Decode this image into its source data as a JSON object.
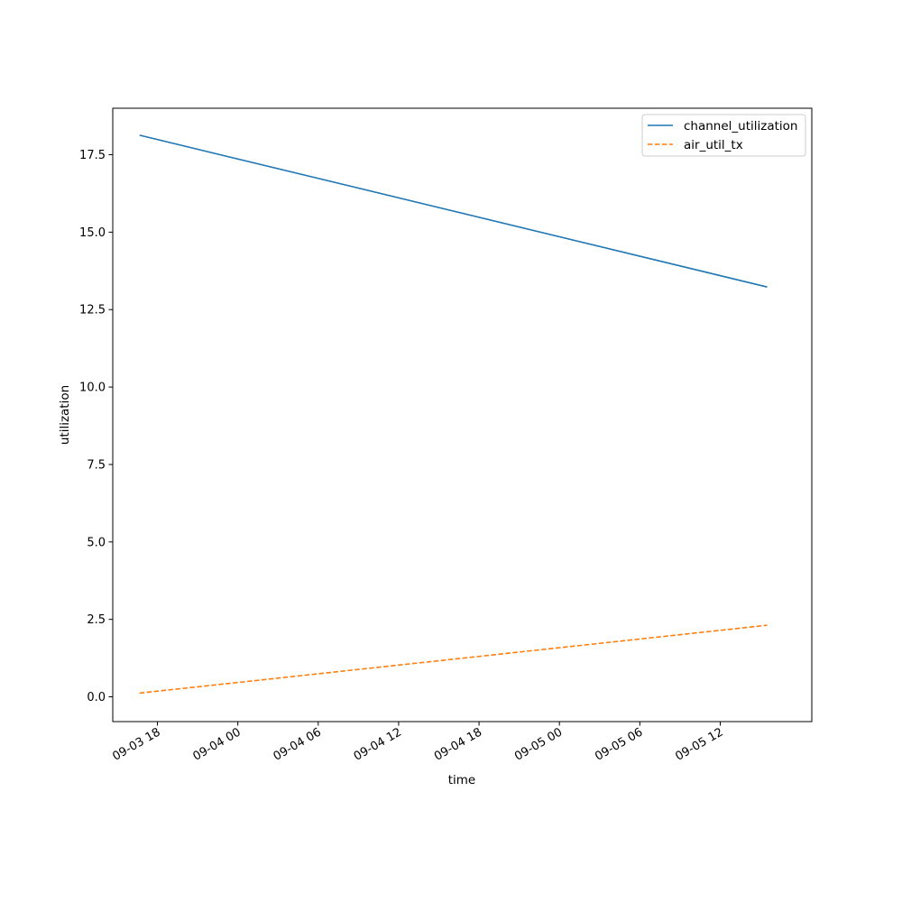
{
  "chart_data": {
    "type": "line",
    "title": "",
    "xlabel": "time",
    "ylabel": "utilization",
    "x_type": "datetime",
    "x": [
      "2023-09-03 16:40",
      "2023-09-05 15:30"
    ],
    "xlim": [
      "2023-09-03 14:40",
      "2023-09-05 18:50"
    ],
    "ylim": [
      -0.8,
      19.0
    ],
    "x_ticks": [
      {
        "value": "2023-09-03 18:00",
        "label": "09-03 18"
      },
      {
        "value": "2023-09-04 00:00",
        "label": "09-04 00"
      },
      {
        "value": "2023-09-04 06:00",
        "label": "09-04 06"
      },
      {
        "value": "2023-09-04 12:00",
        "label": "09-04 12"
      },
      {
        "value": "2023-09-04 18:00",
        "label": "09-04 18"
      },
      {
        "value": "2023-09-05 00:00",
        "label": "09-05 00"
      },
      {
        "value": "2023-09-05 06:00",
        "label": "09-05 06"
      },
      {
        "value": "2023-09-05 12:00",
        "label": "09-05 12"
      }
    ],
    "y_ticks": [
      0.0,
      2.5,
      5.0,
      7.5,
      10.0,
      12.5,
      15.0,
      17.5
    ],
    "y_tick_labels": [
      "0.0",
      "2.5",
      "5.0",
      "7.5",
      "10.0",
      "12.5",
      "15.0",
      "17.5"
    ],
    "series": [
      {
        "name": "channel_utilization",
        "values": [
          18.13,
          13.23
        ],
        "color": "#1f77b4",
        "style": "solid"
      },
      {
        "name": "air_util_tx",
        "values": [
          0.12,
          2.31
        ],
        "color": "#ff7f0e",
        "style": "dashed"
      }
    ],
    "grid": false,
    "legend": "top-right"
  }
}
